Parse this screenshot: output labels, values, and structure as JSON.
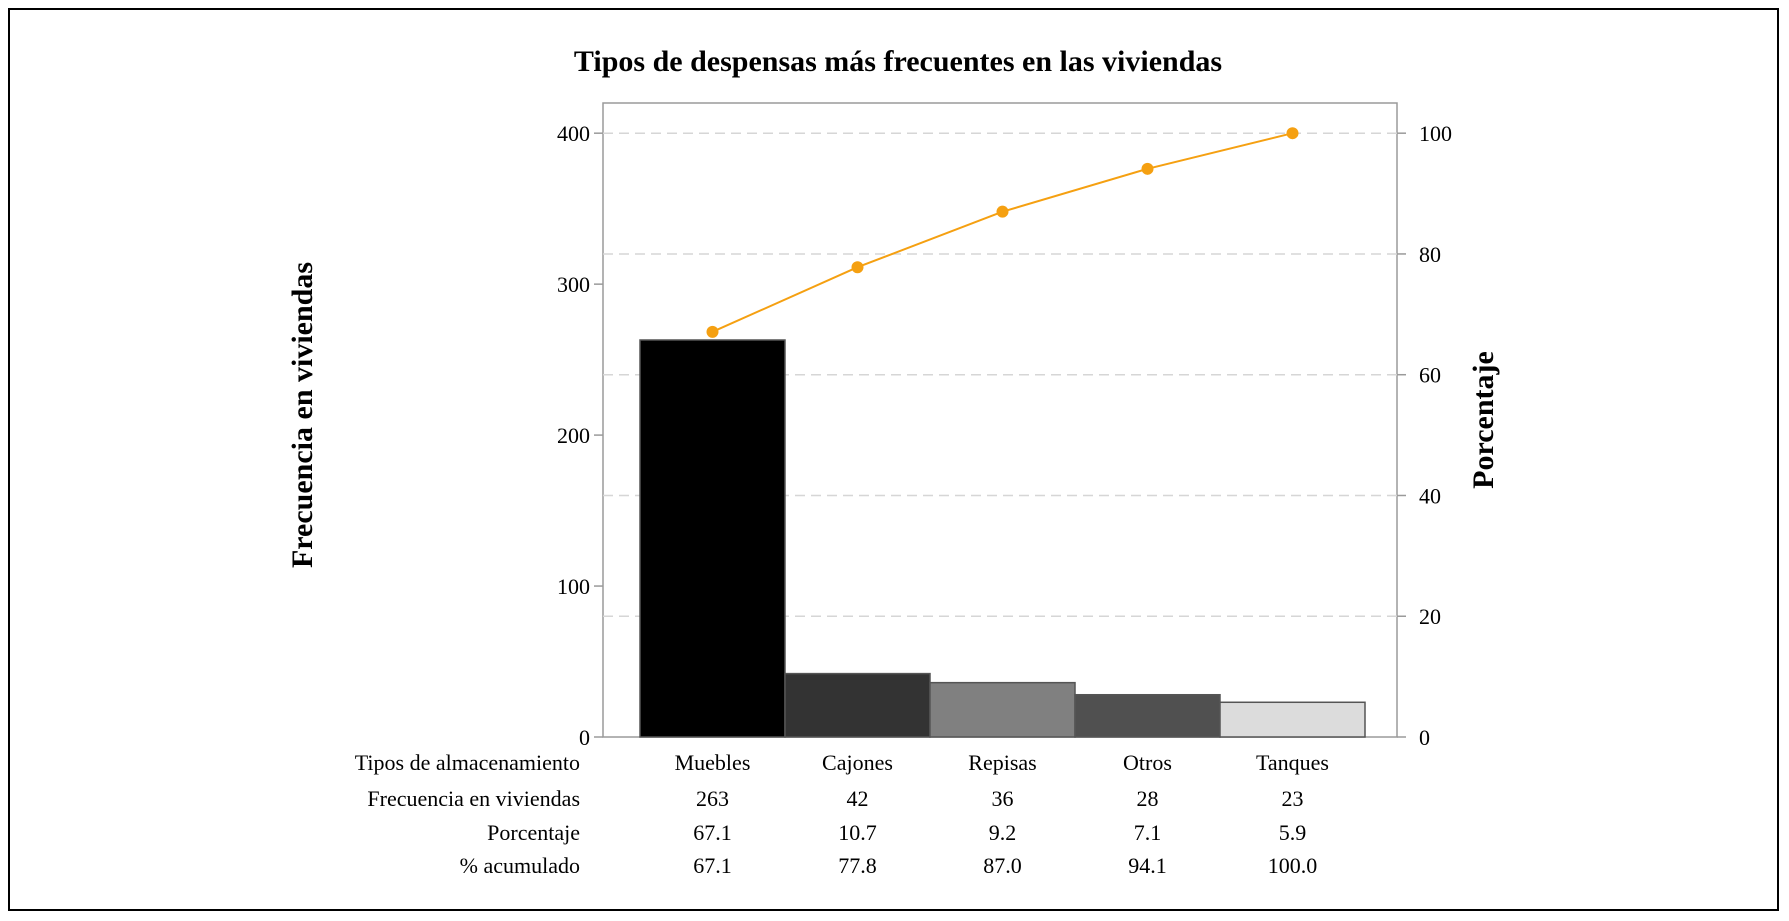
{
  "chart_data": {
    "type": "bar",
    "title": "Tipos de despensas más frecuentes en las viviendas",
    "ylabel": "Frecuencia en viviendas",
    "y2label": "Porcentaje",
    "ylim": [
      0,
      420
    ],
    "y2lim": [
      0,
      105
    ],
    "yticks": [
      0,
      100,
      200,
      300,
      400
    ],
    "y2ticks": [
      0,
      20,
      40,
      60,
      80,
      100
    ],
    "grid": true,
    "categories": [
      "Muebles",
      "Cajones",
      "Repisas",
      "Otros",
      "Tanques"
    ],
    "series": [
      {
        "type": "bar",
        "values": [
          263,
          42,
          36,
          28,
          23
        ]
      },
      {
        "type": "line",
        "axis": "right",
        "values": [
          67.1,
          77.8,
          87.0,
          94.1,
          100.0
        ]
      }
    ],
    "bar_colors": [
      "#000000",
      "#333333",
      "#808080",
      "#505050",
      "#dcdcdc"
    ],
    "line_color": "#f5a011",
    "table": {
      "header_label": "Tipos de almacenamiento",
      "rows": [
        {
          "label": "Frecuencia en viviendas",
          "values": [
            "263",
            "42",
            "36",
            "28",
            "23"
          ]
        },
        {
          "label": "Porcentaje",
          "values": [
            "67.1",
            "10.7",
            "9.2",
            "7.1",
            "5.9"
          ]
        },
        {
          "label": "% acumulado",
          "values": [
            "67.1",
            "77.8",
            "87.0",
            "94.1",
            "100.0"
          ]
        }
      ]
    }
  }
}
